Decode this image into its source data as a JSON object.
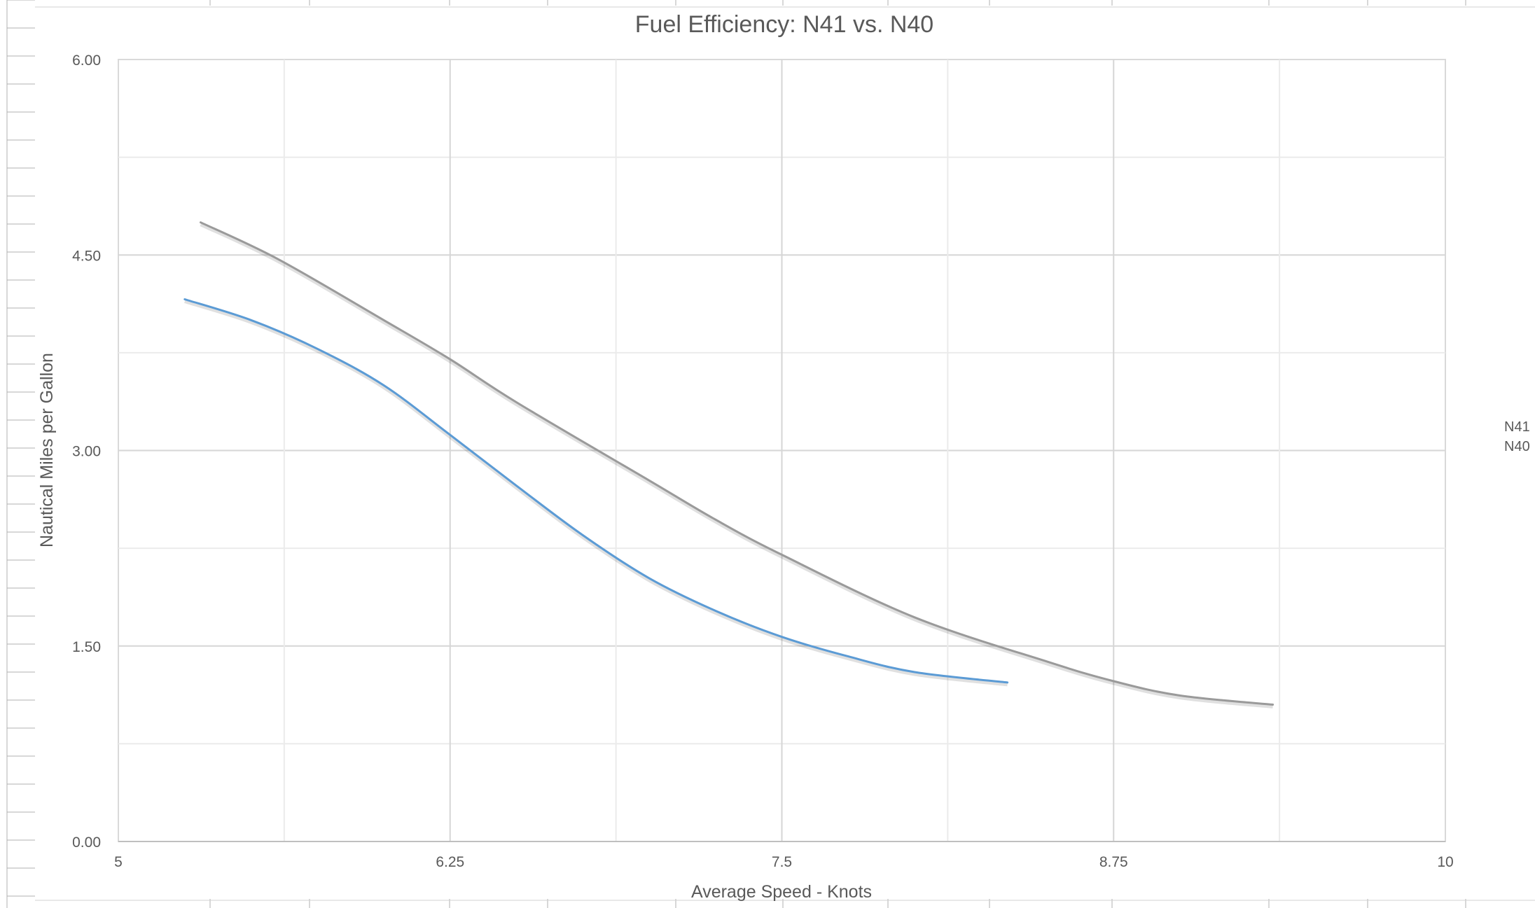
{
  "chart_data": {
    "type": "line",
    "title": "Fuel Efficiency: N41 vs. N40",
    "xlabel": "Average Speed - Knots",
    "ylabel": "Nautical Miles per Gallon",
    "xlim": [
      5,
      10
    ],
    "ylim": [
      0,
      6
    ],
    "x_ticks": [
      "5",
      "6.25",
      "7.5",
      "8.75",
      "10"
    ],
    "y_ticks": [
      "0.00",
      "1.50",
      "3.00",
      "4.50",
      "6.00"
    ],
    "grid": true,
    "legend_position": "right",
    "series": [
      {
        "name": "N41",
        "color": "#9a9a9a",
        "points": [
          [
            5.31,
            4.75
          ],
          [
            5.6,
            4.47
          ],
          [
            6.0,
            4.0
          ],
          [
            6.25,
            3.7
          ],
          [
            6.5,
            3.37
          ],
          [
            7.0,
            2.77
          ],
          [
            7.25,
            2.47
          ],
          [
            7.5,
            2.2
          ],
          [
            8.0,
            1.72
          ],
          [
            8.5,
            1.38
          ],
          [
            8.75,
            1.23
          ],
          [
            9.0,
            1.12
          ],
          [
            9.35,
            1.05
          ]
        ]
      },
      {
        "name": "N40",
        "color": "#5b9bd5",
        "points": [
          [
            5.25,
            4.16
          ],
          [
            5.5,
            4.0
          ],
          [
            5.75,
            3.78
          ],
          [
            6.0,
            3.5
          ],
          [
            6.25,
            3.12
          ],
          [
            6.5,
            2.73
          ],
          [
            6.75,
            2.35
          ],
          [
            7.0,
            2.02
          ],
          [
            7.25,
            1.77
          ],
          [
            7.5,
            1.57
          ],
          [
            7.75,
            1.42
          ],
          [
            8.0,
            1.3
          ],
          [
            8.35,
            1.22
          ]
        ]
      }
    ]
  }
}
